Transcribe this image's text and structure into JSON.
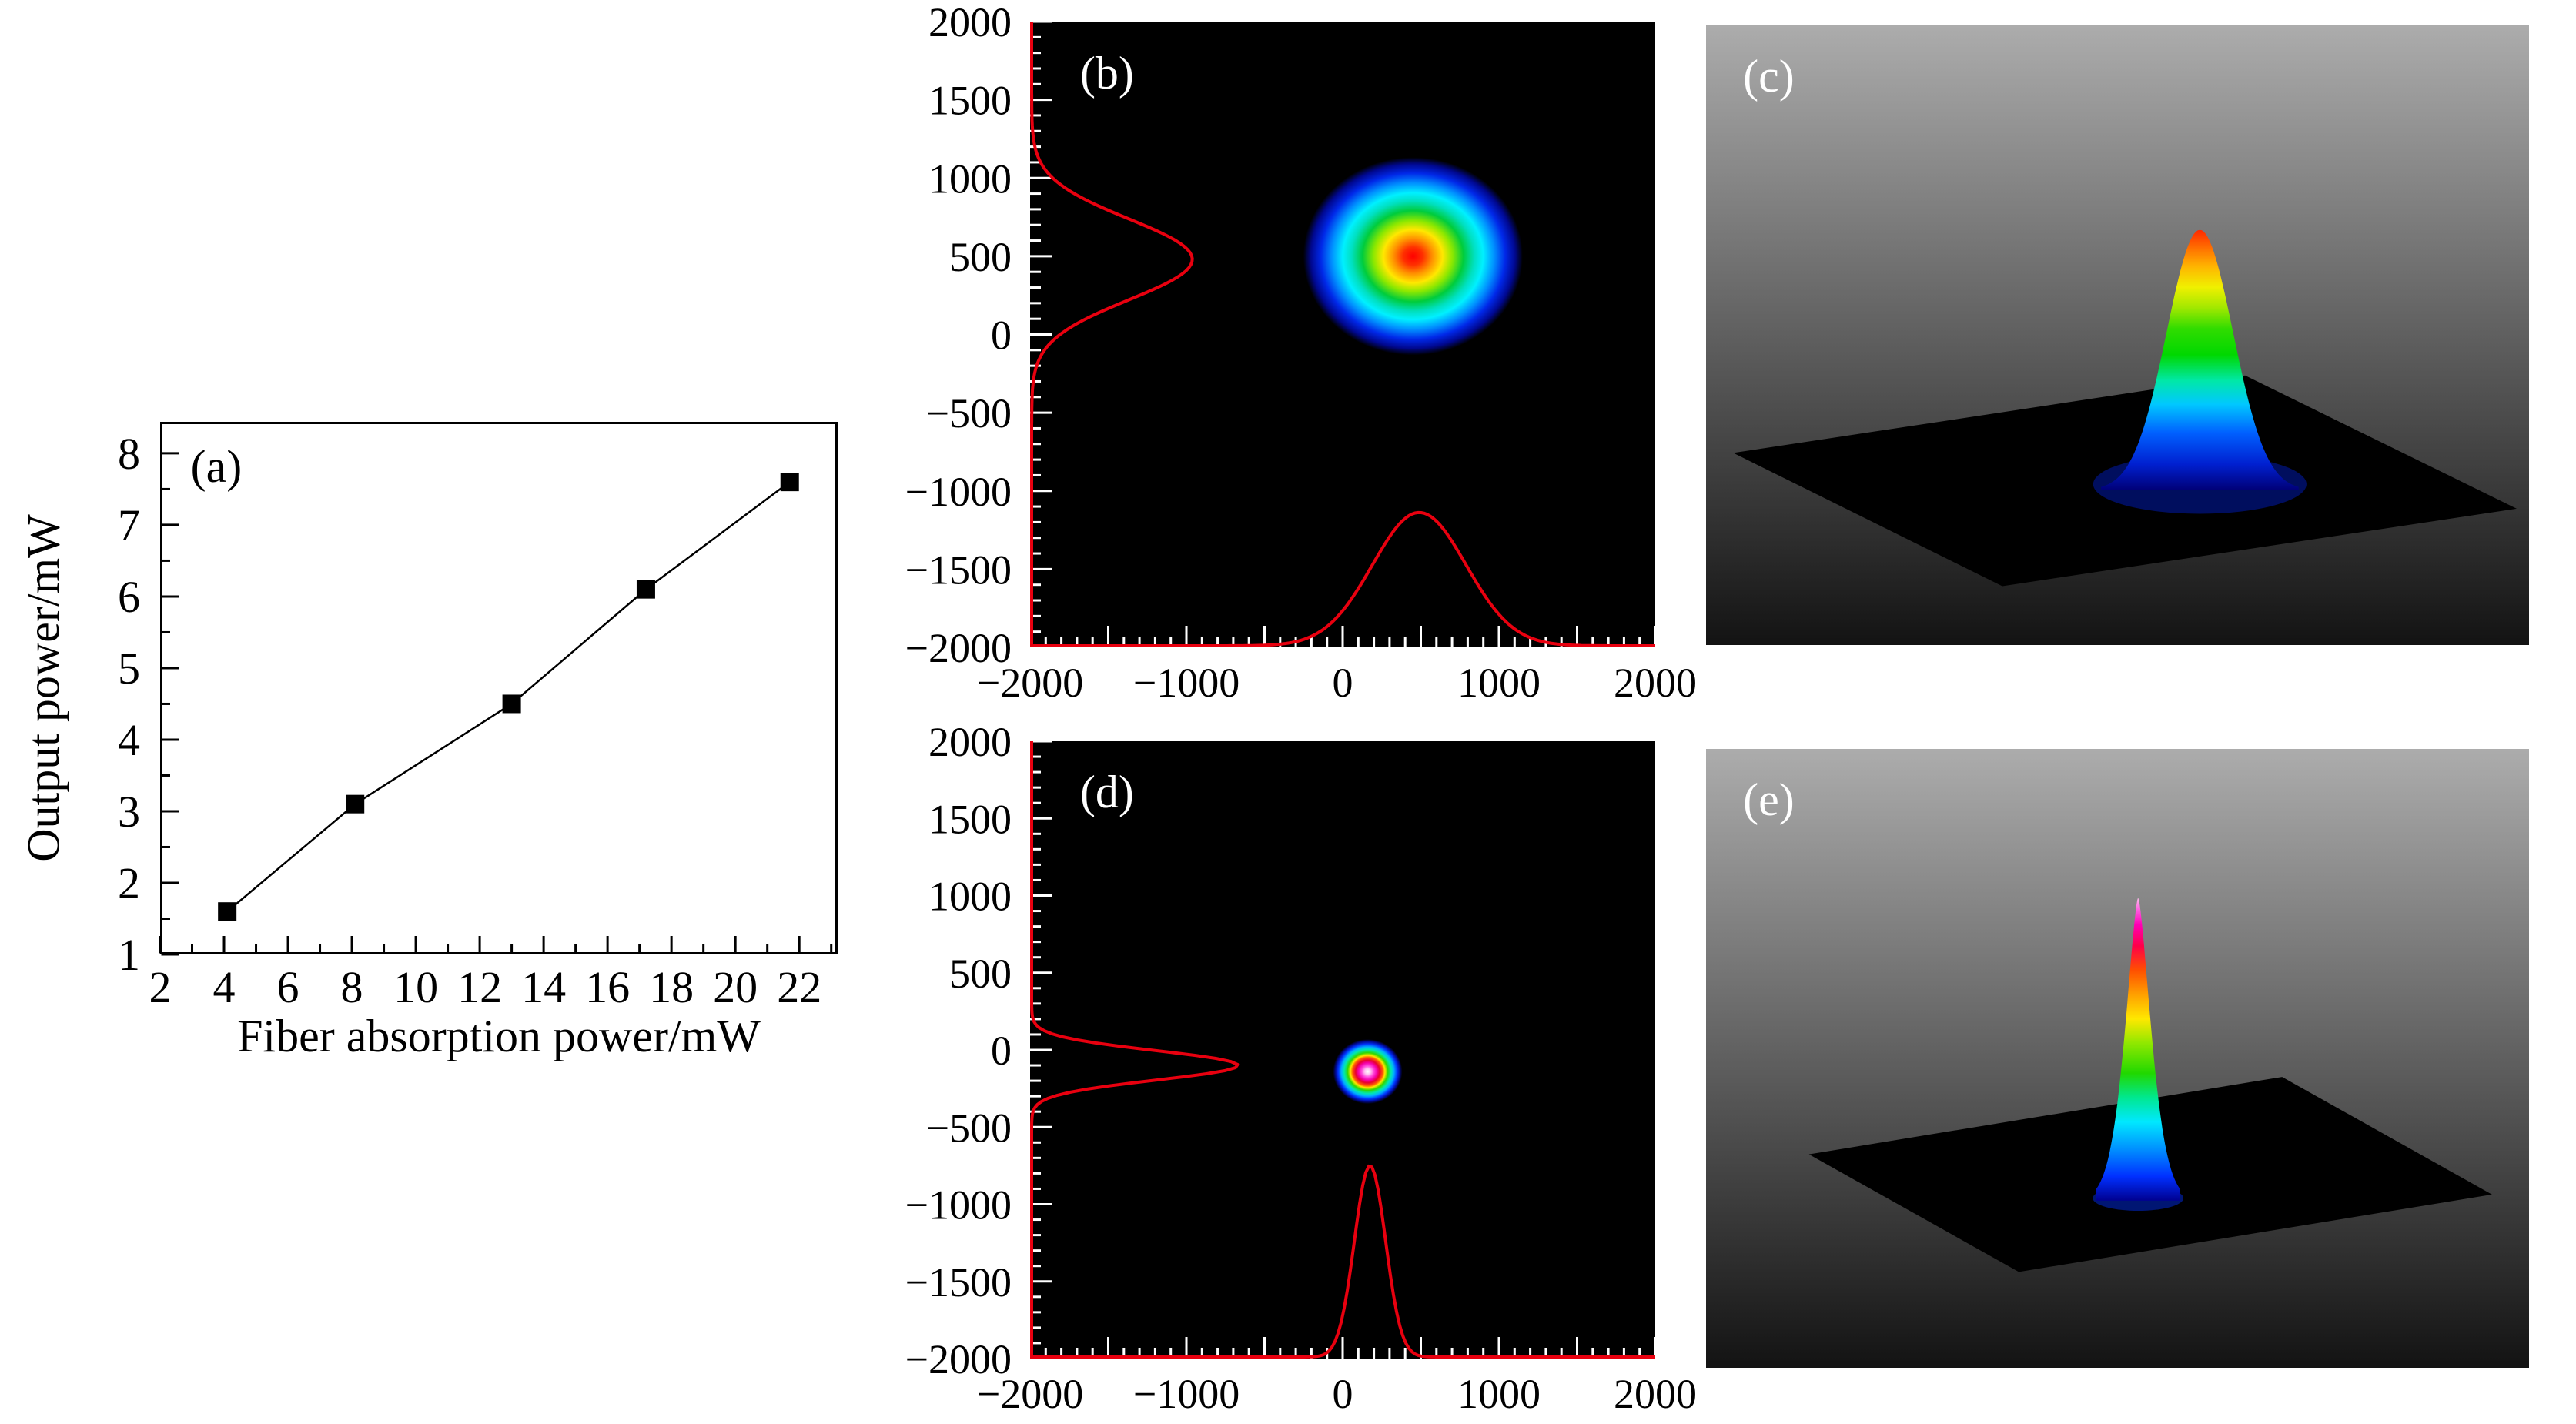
{
  "figure": {
    "background": "#ffffff",
    "profile_color": "#e8000f",
    "tick_color_dark_panels": "#ffffff"
  },
  "chart_data": [
    {
      "id": "a",
      "type": "line",
      "panel_label": "(a)",
      "xlabel": "Fiber absorption power/mW",
      "ylabel": "Output power/mW",
      "x": [
        4.1,
        8.1,
        13.0,
        17.2,
        21.7
      ],
      "y": [
        1.6,
        3.1,
        4.5,
        6.1,
        7.6
      ],
      "xlim": [
        2,
        23.2
      ],
      "ylim": [
        1,
        8.44
      ],
      "x_major_ticks": [
        2,
        4,
        6,
        8,
        10,
        12,
        14,
        16,
        18,
        20,
        22
      ],
      "x_minor_ticks": [
        3,
        5,
        7,
        9,
        11,
        13,
        15,
        17,
        19,
        21,
        23
      ],
      "y_major_ticks": [
        1,
        2,
        3,
        4,
        5,
        6,
        7,
        8
      ],
      "y_minor_ticks": [
        1.5,
        2.5,
        3.5,
        4.5,
        5.5,
        6.5,
        7.5
      ],
      "marker": "filled-square",
      "line_style": "solid",
      "color": "#000000",
      "grid": false
    },
    {
      "id": "b",
      "type": "heatmap",
      "panel_label": "(b)",
      "background": "#000000",
      "tick_color": "#ffffff",
      "xlim": [
        -2000,
        2000
      ],
      "ylim": [
        -2000,
        2000
      ],
      "x_ticks": [
        -2000,
        -1000,
        0,
        1000,
        2000
      ],
      "y_ticks": [
        2000,
        1500,
        1000,
        500,
        0,
        -500,
        -1000,
        -1500,
        -2000
      ],
      "minor_tick_step": 100,
      "major_tick_step": 500,
      "beam": {
        "center": [
          450,
          500
        ],
        "radius": [
          650,
          620
        ],
        "colormap": [
          [
            0,
            "#ff0000"
          ],
          [
            0.09,
            "#ff3000"
          ],
          [
            0.18,
            "#ff9400"
          ],
          [
            0.27,
            "#ffe800"
          ],
          [
            0.36,
            "#8ce800"
          ],
          [
            0.46,
            "#00cc3c"
          ],
          [
            0.56,
            "#00e0c0"
          ],
          [
            0.64,
            "#00f0ff"
          ],
          [
            0.74,
            "#0090ff"
          ],
          [
            0.84,
            "#0028e8"
          ],
          [
            0.93,
            "#000890"
          ],
          [
            1,
            "#000000"
          ]
        ]
      },
      "profile_left": {
        "center": 480,
        "sigma": 258,
        "amplitude_frac": 0.257,
        "color": "#e8000f"
      },
      "profile_bottom": {
        "center": 490,
        "sigma": 300,
        "amplitude_frac": 0.213,
        "color": "#e8000f"
      }
    },
    {
      "id": "c",
      "type": "surface_3d",
      "panel_label": "(c)",
      "background_gradient": [
        "#acacac",
        "#131313"
      ],
      "plane_color": "#000000",
      "plane_corners": [
        [
          0.033,
          0.69
        ],
        [
          0.655,
          0.565
        ],
        [
          0.985,
          0.78
        ],
        [
          0.36,
          0.905
        ]
      ],
      "peak": {
        "center_x": 0.6,
        "base_y": 0.75,
        "half_width": 0.12,
        "height": 0.42,
        "shape_k": 2.1,
        "shape_p": 2,
        "color_stops": [
          [
            0,
            "#000077"
          ],
          [
            0.1,
            "#0020d0"
          ],
          [
            0.22,
            "#0060ff"
          ],
          [
            0.33,
            "#00c8ff"
          ],
          [
            0.42,
            "#00e8a8"
          ],
          [
            0.52,
            "#00d800"
          ],
          [
            0.62,
            "#30dc00"
          ],
          [
            0.7,
            "#a0e800"
          ],
          [
            0.78,
            "#f0f000"
          ],
          [
            0.86,
            "#ffb400"
          ],
          [
            0.93,
            "#ff7000"
          ],
          [
            1,
            "#ff2800"
          ]
        ]
      }
    },
    {
      "id": "d",
      "type": "heatmap",
      "panel_label": "(d)",
      "background": "#000000",
      "tick_color": "#ffffff",
      "xlim": [
        -2000,
        2000
      ],
      "ylim": [
        -2000,
        2000
      ],
      "x_ticks": [
        -2000,
        -1000,
        0,
        1000,
        2000
      ],
      "y_ticks": [
        2000,
        1500,
        1000,
        500,
        0,
        -500,
        -1000,
        -1500,
        -2000
      ],
      "minor_tick_step": 100,
      "major_tick_step": 500,
      "beam": {
        "center": [
          160,
          -140
        ],
        "radius": [
          205,
          205
        ],
        "colormap": [
          [
            0,
            "#ffffff"
          ],
          [
            0.09,
            "#ffc0f0"
          ],
          [
            0.18,
            "#ff48dc"
          ],
          [
            0.27,
            "#f400a8"
          ],
          [
            0.35,
            "#e80030"
          ],
          [
            0.44,
            "#ff6000"
          ],
          [
            0.5,
            "#ffe800"
          ],
          [
            0.58,
            "#30d800"
          ],
          [
            0.68,
            "#00e8b0"
          ],
          [
            0.76,
            "#00b0ff"
          ],
          [
            0.85,
            "#0034ff"
          ],
          [
            0.93,
            "#000890"
          ],
          [
            1,
            "#000000"
          ]
        ]
      },
      "profile_left": {
        "center": -100,
        "sigma": 95,
        "amplitude_frac": 0.33,
        "color": "#e8000f"
      },
      "profile_bottom": {
        "center": 175,
        "sigma": 100,
        "amplitude_frac": 0.31,
        "color": "#e8000f"
      }
    },
    {
      "id": "e",
      "type": "surface_3d",
      "panel_label": "(e)",
      "background_gradient": [
        "#acacac",
        "#131313"
      ],
      "plane_color": "#000000",
      "plane_corners": [
        [
          0.125,
          0.655
        ],
        [
          0.7,
          0.53
        ],
        [
          0.955,
          0.72
        ],
        [
          0.38,
          0.845
        ]
      ],
      "peak": {
        "center_x": 0.525,
        "base_y": 0.73,
        "half_width": 0.051,
        "height": 0.49,
        "shape_k": 2.2,
        "shape_p": 1.5,
        "color_stops": [
          [
            0,
            "#000090"
          ],
          [
            0.08,
            "#0030ff"
          ],
          [
            0.17,
            "#0090ff"
          ],
          [
            0.26,
            "#00e8ff"
          ],
          [
            0.34,
            "#00e890"
          ],
          [
            0.42,
            "#20d800"
          ],
          [
            0.52,
            "#90e800"
          ],
          [
            0.6,
            "#ffe800"
          ],
          [
            0.68,
            "#ffa000"
          ],
          [
            0.76,
            "#ff5000"
          ],
          [
            0.84,
            "#ff0048"
          ],
          [
            0.91,
            "#ff00b4"
          ],
          [
            0.96,
            "#ff60e0"
          ],
          [
            1,
            "#ffc0ee"
          ]
        ]
      }
    }
  ]
}
